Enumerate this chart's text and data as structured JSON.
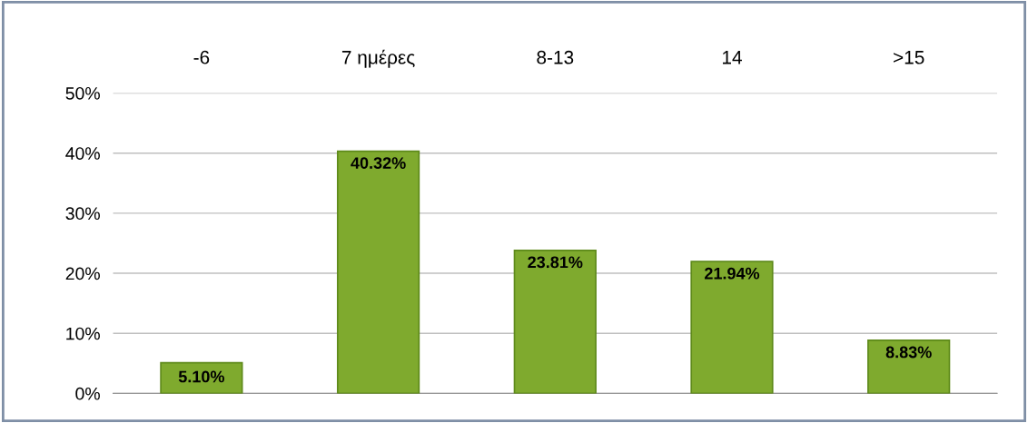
{
  "chart_data": {
    "type": "bar",
    "categories": [
      "-6",
      "7 ημέρες",
      "8-13",
      "14",
      ">15"
    ],
    "values": [
      5.1,
      40.32,
      23.81,
      21.94,
      8.83
    ],
    "value_labels": [
      "5.10%",
      "40.32%",
      "23.81%",
      "21.94%",
      "8.83%"
    ],
    "color": "#7faa2e",
    "ylim": [
      0,
      50
    ],
    "yticks": [
      {
        "value": 0,
        "label": "0%"
      },
      {
        "value": 10,
        "label": "10%"
      },
      {
        "value": 20,
        "label": "20%"
      },
      {
        "value": 30,
        "label": "30%"
      },
      {
        "value": 40,
        "label": "40%"
      },
      {
        "value": 50,
        "label": "50%"
      }
    ],
    "grid": "y",
    "legend": false
  }
}
